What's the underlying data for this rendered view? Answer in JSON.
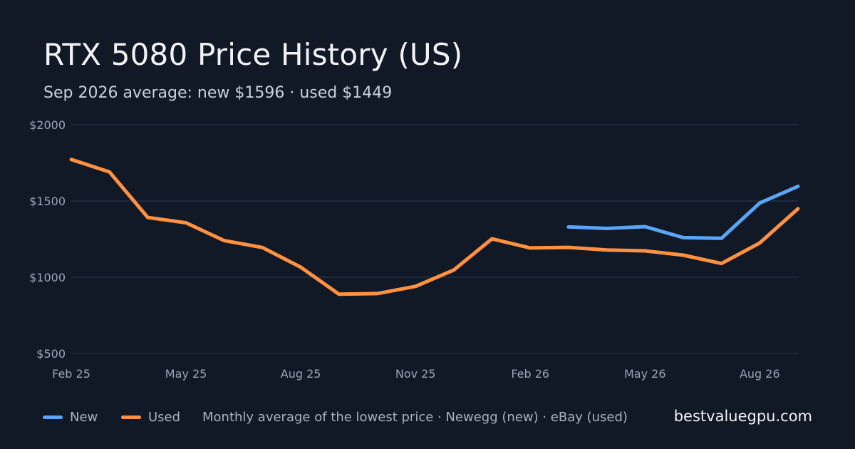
{
  "title": "RTX 5080 Price History (US)",
  "subtitle": "Sep 2026 average: new $1596 · used $1449",
  "chart_data": {
    "type": "line",
    "ylim": [
      500,
      2000
    ],
    "yticks": [
      500,
      1000,
      1500,
      2000
    ],
    "ytick_labels": [
      "$500",
      "$1000",
      "$1500",
      "$2000"
    ],
    "x": [
      "2025-02",
      "2025-03",
      "2025-04",
      "2025-05",
      "2025-06",
      "2025-07",
      "2025-08",
      "2025-09",
      "2025-10",
      "2025-11",
      "2025-12",
      "2026-01",
      "2026-02",
      "2026-03",
      "2026-04",
      "2026-05",
      "2026-06",
      "2026-07",
      "2026-08",
      "2026-09"
    ],
    "xtick_labels": [
      {
        "x": "2025-02",
        "label": "Feb 25"
      },
      {
        "x": "2025-05",
        "label": "May 25"
      },
      {
        "x": "2025-08",
        "label": "Aug 25"
      },
      {
        "x": "2025-11",
        "label": "Nov 25"
      },
      {
        "x": "2026-02",
        "label": "Feb 26"
      },
      {
        "x": "2026-05",
        "label": "May 26"
      },
      {
        "x": "2026-08",
        "label": "Aug 26"
      }
    ],
    "grid": true,
    "legend_position": "bottom-left",
    "series": [
      {
        "name": "New",
        "color": "#5aa5f5",
        "values": [
          null,
          null,
          null,
          null,
          null,
          null,
          null,
          null,
          null,
          null,
          null,
          null,
          null,
          1330,
          1320,
          1332,
          1260,
          1255,
          1487,
          1596
        ]
      },
      {
        "name": "Used",
        "color": "#ff9140",
        "values": [
          1772,
          1690,
          1392,
          1357,
          1240,
          1195,
          1066,
          889,
          893,
          940,
          1047,
          1252,
          1192,
          1196,
          1179,
          1173,
          1145,
          1090,
          1225,
          1449
        ]
      }
    ]
  },
  "footer": {
    "note": "Monthly average of the lowest price · Newegg (new) · eBay (used)",
    "brand": "bestvaluegpu.com"
  },
  "colors": {
    "background": "#111826",
    "grid": "#243041",
    "new": "#5aa5f5",
    "used": "#ff9140"
  }
}
